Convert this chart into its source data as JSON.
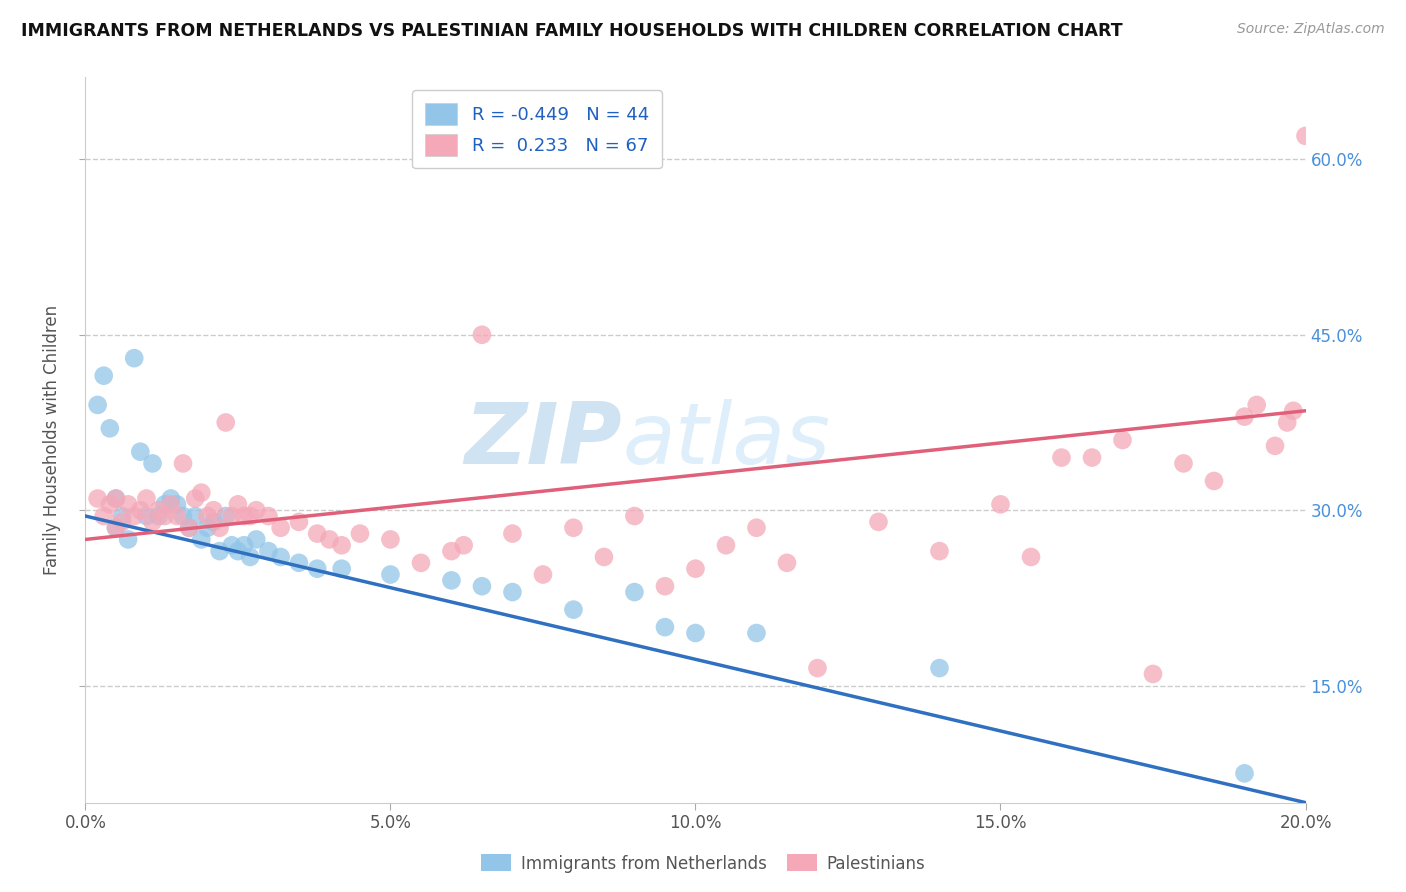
{
  "title": "IMMIGRANTS FROM NETHERLANDS VS PALESTINIAN FAMILY HOUSEHOLDS WITH CHILDREN CORRELATION CHART",
  "source": "Source: ZipAtlas.com",
  "ylabel": "Family Households with Children",
  "xlim": [
    0.0,
    0.2
  ],
  "ylim": [
    0.05,
    0.67
  ],
  "yticks": [
    0.15,
    0.3,
    0.45,
    0.6
  ],
  "ytick_labels": [
    "15.0%",
    "30.0%",
    "45.0%",
    "60.0%"
  ],
  "xticks": [
    0.0,
    0.05,
    0.1,
    0.15,
    0.2
  ],
  "xtick_labels": [
    "0.0%",
    "5.0%",
    "10.0%",
    "15.0%",
    "20.0%"
  ],
  "blue_R": "-0.449",
  "blue_N": "44",
  "pink_R": "0.233",
  "pink_N": "67",
  "blue_color": "#92c5e8",
  "pink_color": "#f4a8b8",
  "blue_line_color": "#3070c0",
  "pink_line_color": "#e0607a",
  "watermark": "ZIPatlas",
  "blue_scatter_x": [
    0.002,
    0.003,
    0.004,
    0.005,
    0.005,
    0.006,
    0.007,
    0.008,
    0.009,
    0.01,
    0.011,
    0.012,
    0.013,
    0.014,
    0.015,
    0.016,
    0.017,
    0.018,
    0.019,
    0.02,
    0.021,
    0.022,
    0.023,
    0.024,
    0.025,
    0.026,
    0.027,
    0.028,
    0.03,
    0.032,
    0.035,
    0.038,
    0.042,
    0.05,
    0.06,
    0.065,
    0.07,
    0.08,
    0.09,
    0.095,
    0.1,
    0.11,
    0.14,
    0.19
  ],
  "blue_scatter_y": [
    0.39,
    0.415,
    0.37,
    0.285,
    0.31,
    0.295,
    0.275,
    0.43,
    0.35,
    0.295,
    0.34,
    0.295,
    0.305,
    0.31,
    0.305,
    0.295,
    0.285,
    0.295,
    0.275,
    0.285,
    0.29,
    0.265,
    0.295,
    0.27,
    0.265,
    0.27,
    0.26,
    0.275,
    0.265,
    0.26,
    0.255,
    0.25,
    0.25,
    0.245,
    0.24,
    0.235,
    0.23,
    0.215,
    0.23,
    0.2,
    0.195,
    0.195,
    0.165,
    0.075
  ],
  "pink_scatter_x": [
    0.002,
    0.003,
    0.004,
    0.005,
    0.005,
    0.006,
    0.007,
    0.008,
    0.009,
    0.01,
    0.011,
    0.012,
    0.013,
    0.014,
    0.015,
    0.016,
    0.017,
    0.018,
    0.019,
    0.02,
    0.021,
    0.022,
    0.023,
    0.024,
    0.025,
    0.026,
    0.027,
    0.028,
    0.03,
    0.032,
    0.035,
    0.038,
    0.04,
    0.042,
    0.045,
    0.05,
    0.055,
    0.06,
    0.062,
    0.065,
    0.07,
    0.075,
    0.08,
    0.085,
    0.09,
    0.095,
    0.1,
    0.105,
    0.11,
    0.115,
    0.12,
    0.13,
    0.14,
    0.15,
    0.155,
    0.16,
    0.165,
    0.17,
    0.175,
    0.18,
    0.185,
    0.19,
    0.192,
    0.195,
    0.197,
    0.198,
    0.2
  ],
  "pink_scatter_y": [
    0.31,
    0.295,
    0.305,
    0.285,
    0.31,
    0.29,
    0.305,
    0.295,
    0.3,
    0.31,
    0.29,
    0.3,
    0.295,
    0.305,
    0.295,
    0.34,
    0.285,
    0.31,
    0.315,
    0.295,
    0.3,
    0.285,
    0.375,
    0.295,
    0.305,
    0.295,
    0.295,
    0.3,
    0.295,
    0.285,
    0.29,
    0.28,
    0.275,
    0.27,
    0.28,
    0.275,
    0.255,
    0.265,
    0.27,
    0.45,
    0.28,
    0.245,
    0.285,
    0.26,
    0.295,
    0.235,
    0.25,
    0.27,
    0.285,
    0.255,
    0.165,
    0.29,
    0.265,
    0.305,
    0.26,
    0.345,
    0.345,
    0.36,
    0.16,
    0.34,
    0.325,
    0.38,
    0.39,
    0.355,
    0.375,
    0.385,
    0.62
  ]
}
